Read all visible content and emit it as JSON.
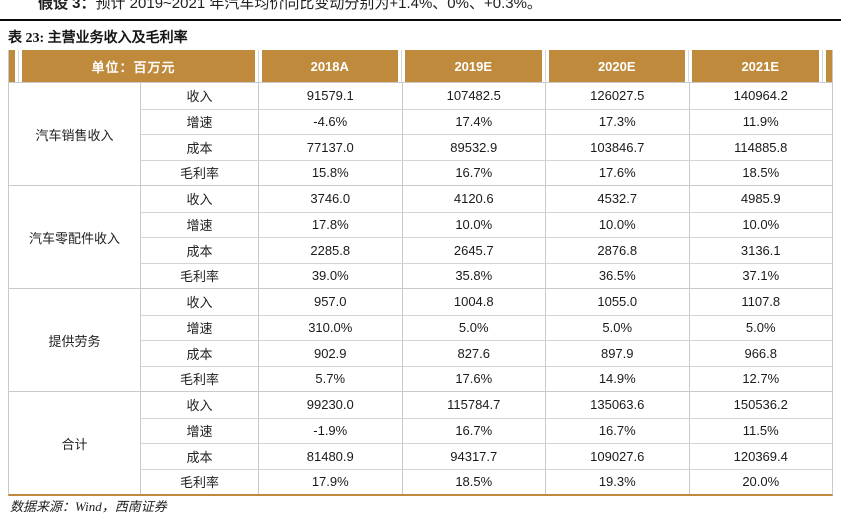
{
  "page": {
    "assumption_bold": "假设 3：",
    "assumption_text": "预计 2019~2021 年汽车均价同比变动分别为+1.4%、0%、+0.3%。",
    "table_title": "表 23: 主营业务收入及毛利率",
    "source_note": "数据来源：Wind，西南证券"
  },
  "colors": {
    "header_gold": "#bf8a3c",
    "grid_line": "#c9c9c9",
    "bottom_rule_gold": "#bf8a3c",
    "top_rule_black": "#0a0a0a",
    "header_text": "#ffffff"
  },
  "table": {
    "unit_header": "单位：百万元",
    "year_headers": [
      "2018A",
      "2019E",
      "2020E",
      "2021E"
    ],
    "groups": [
      {
        "name": "汽车销售收入",
        "rows": [
          {
            "metric": "收入",
            "values": [
              "91579.1",
              "107482.5",
              "126027.5",
              "140964.2"
            ]
          },
          {
            "metric": "增速",
            "values": [
              "-4.6%",
              "17.4%",
              "17.3%",
              "11.9%"
            ]
          },
          {
            "metric": "成本",
            "values": [
              "77137.0",
              "89532.9",
              "103846.7",
              "114885.8"
            ]
          },
          {
            "metric": "毛利率",
            "values": [
              "15.8%",
              "16.7%",
              "17.6%",
              "18.5%"
            ]
          }
        ]
      },
      {
        "name": "汽车零配件收入",
        "rows": [
          {
            "metric": "收入",
            "values": [
              "3746.0",
              "4120.6",
              "4532.7",
              "4985.9"
            ]
          },
          {
            "metric": "增速",
            "values": [
              "17.8%",
              "10.0%",
              "10.0%",
              "10.0%"
            ]
          },
          {
            "metric": "成本",
            "values": [
              "2285.8",
              "2645.7",
              "2876.8",
              "3136.1"
            ]
          },
          {
            "metric": "毛利率",
            "values": [
              "39.0%",
              "35.8%",
              "36.5%",
              "37.1%"
            ]
          }
        ]
      },
      {
        "name": "提供劳务",
        "rows": [
          {
            "metric": "收入",
            "values": [
              "957.0",
              "1004.8",
              "1055.0",
              "1107.8"
            ]
          },
          {
            "metric": "增速",
            "values": [
              "310.0%",
              "5.0%",
              "5.0%",
              "5.0%"
            ]
          },
          {
            "metric": "成本",
            "values": [
              "902.9",
              "827.6",
              "897.9",
              "966.8"
            ]
          },
          {
            "metric": "毛利率",
            "values": [
              "5.7%",
              "17.6%",
              "14.9%",
              "12.7%"
            ]
          }
        ]
      },
      {
        "name": "合计",
        "rows": [
          {
            "metric": "收入",
            "values": [
              "99230.0",
              "115784.7",
              "135063.6",
              "150536.2"
            ]
          },
          {
            "metric": "增速",
            "values": [
              "-1.9%",
              "16.7%",
              "16.7%",
              "11.5%"
            ]
          },
          {
            "metric": "成本",
            "values": [
              "81480.9",
              "94317.7",
              "109027.6",
              "120369.4"
            ]
          },
          {
            "metric": "毛利率",
            "values": [
              "17.9%",
              "18.5%",
              "19.3%",
              "20.0%"
            ]
          }
        ]
      }
    ]
  }
}
